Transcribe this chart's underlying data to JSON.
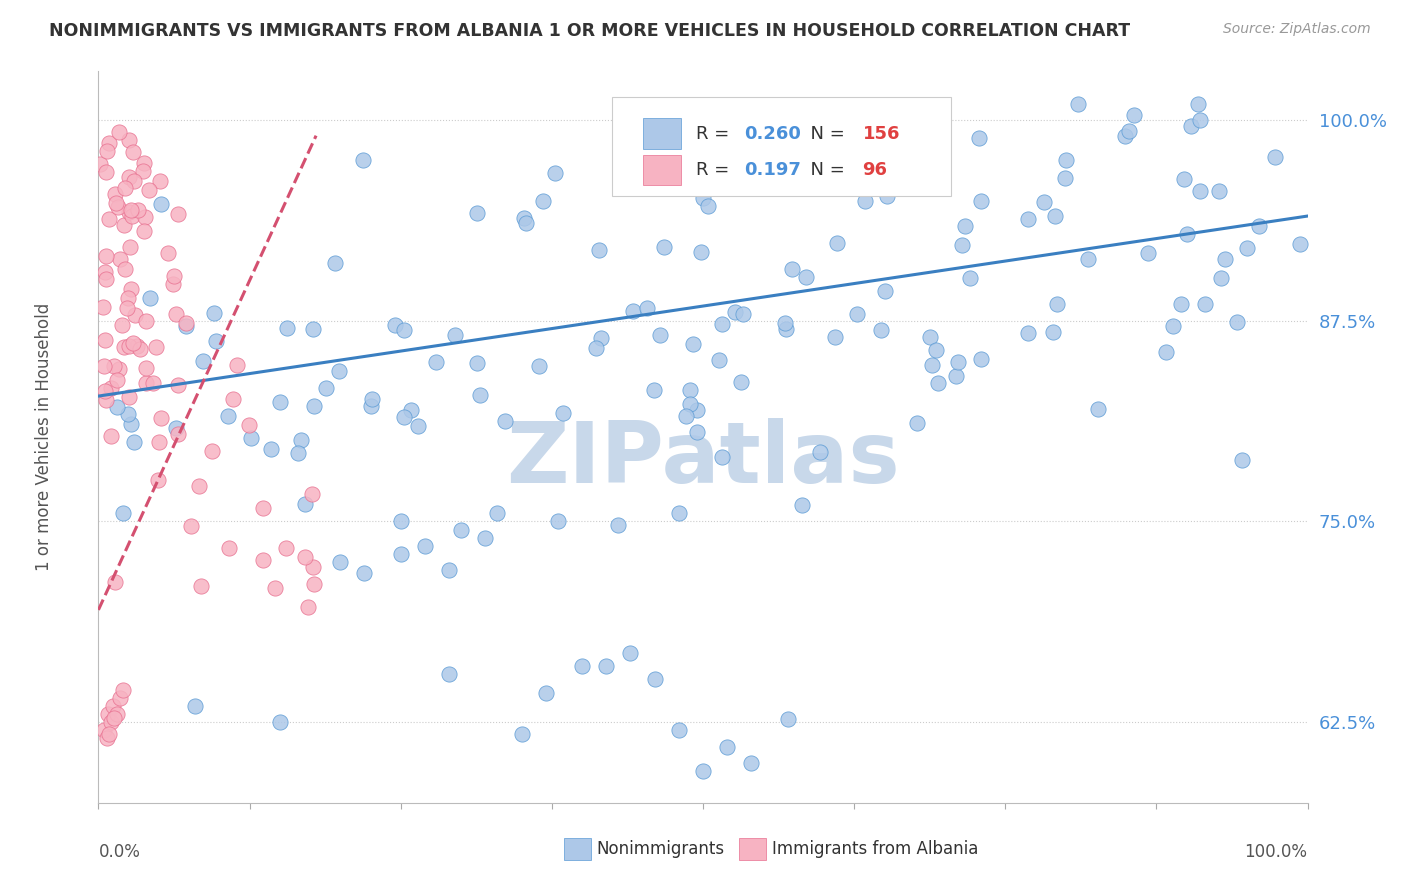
{
  "title": "NONIMMIGRANTS VS IMMIGRANTS FROM ALBANIA 1 OR MORE VEHICLES IN HOUSEHOLD CORRELATION CHART",
  "source": "Source: ZipAtlas.com",
  "ylabel": "1 or more Vehicles in Household",
  "ytick_values": [
    0.625,
    0.75,
    0.875,
    1.0
  ],
  "ytick_labels": [
    "62.5%",
    "75.0%",
    "87.5%",
    "100.0%"
  ],
  "legend_blue_label": "Nonimmigrants",
  "legend_pink_label": "Immigrants from Albania",
  "R_blue": 0.26,
  "N_blue": 156,
  "R_pink": 0.197,
  "N_pink": 96,
  "blue_color": "#adc8e8",
  "blue_edge_color": "#5b9bd5",
  "pink_color": "#f7b3c2",
  "pink_edge_color": "#e87090",
  "blue_line_color": "#3a7fc1",
  "pink_line_color": "#d45070",
  "watermark_color": "#c8d8ea",
  "background_color": "#ffffff",
  "grid_color": "#cccccc",
  "title_color": "#333333",
  "source_color": "#999999",
  "axis_label_color": "#555555",
  "right_tick_color": "#4a90d9",
  "xmin": 0.0,
  "xmax": 1.0,
  "ymin": 0.575,
  "ymax": 1.03,
  "blue_line_x0": 0.0,
  "blue_line_y0": 0.828,
  "blue_line_x1": 1.0,
  "blue_line_y1": 0.94,
  "pink_line_x0": 0.0,
  "pink_line_y0": 0.695,
  "pink_line_x1": 0.18,
  "pink_line_y1": 0.99
}
